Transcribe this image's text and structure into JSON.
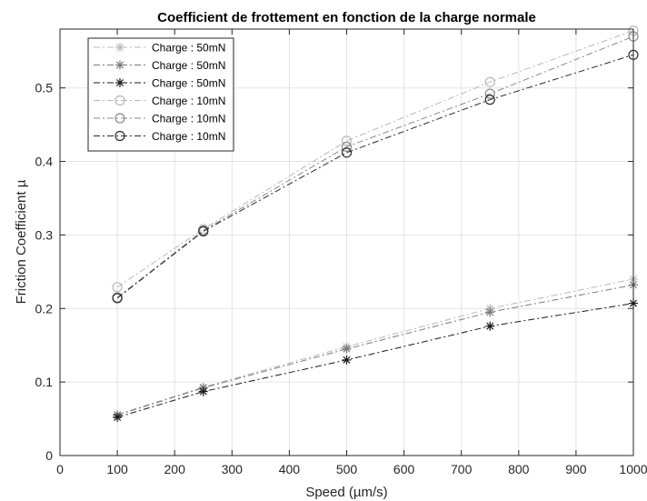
{
  "chart_data": {
    "type": "line",
    "title": "Coefficient de frottement en fonction de la charge normale",
    "xlabel": "Speed (µm/s)",
    "ylabel": "Friction Coefficient µ",
    "xlim": [
      0,
      1000
    ],
    "ylim": [
      0,
      0.58
    ],
    "xticks": [
      "0",
      "100",
      "200",
      "300",
      "400",
      "500",
      "600",
      "700",
      "800",
      "900",
      "1000"
    ],
    "yticks": [
      "0",
      "0.1",
      "0.2",
      "0.3",
      "0.4",
      "0.5"
    ],
    "grid": true,
    "legend_position": "top-left",
    "x": [
      100,
      250,
      500,
      750,
      1000
    ],
    "series": [
      {
        "name": "Charge : 50mN",
        "marker": "star",
        "color": "#b8b8b8",
        "values": [
          0.056,
          0.093,
          0.148,
          0.2,
          0.24
        ]
      },
      {
        "name": "Charge : 50mN",
        "marker": "star",
        "color": "#7a7a7a",
        "values": [
          0.055,
          0.092,
          0.145,
          0.195,
          0.232
        ]
      },
      {
        "name": "Charge : 50mN",
        "marker": "star",
        "color": "#1a1a1a",
        "values": [
          0.052,
          0.087,
          0.13,
          0.176,
          0.207
        ]
      },
      {
        "name": "Charge : 10mN",
        "marker": "circle",
        "color": "#b8b8b8",
        "values": [
          0.229,
          0.308,
          0.428,
          0.508,
          0.578
        ]
      },
      {
        "name": "Charge : 10mN",
        "marker": "circle",
        "color": "#8a8a8a",
        "values": [
          0.215,
          0.306,
          0.42,
          0.492,
          0.57
        ]
      },
      {
        "name": "Charge : 10mN",
        "marker": "circle",
        "color": "#2a2a2a",
        "values": [
          0.214,
          0.305,
          0.412,
          0.484,
          0.545
        ]
      }
    ]
  }
}
